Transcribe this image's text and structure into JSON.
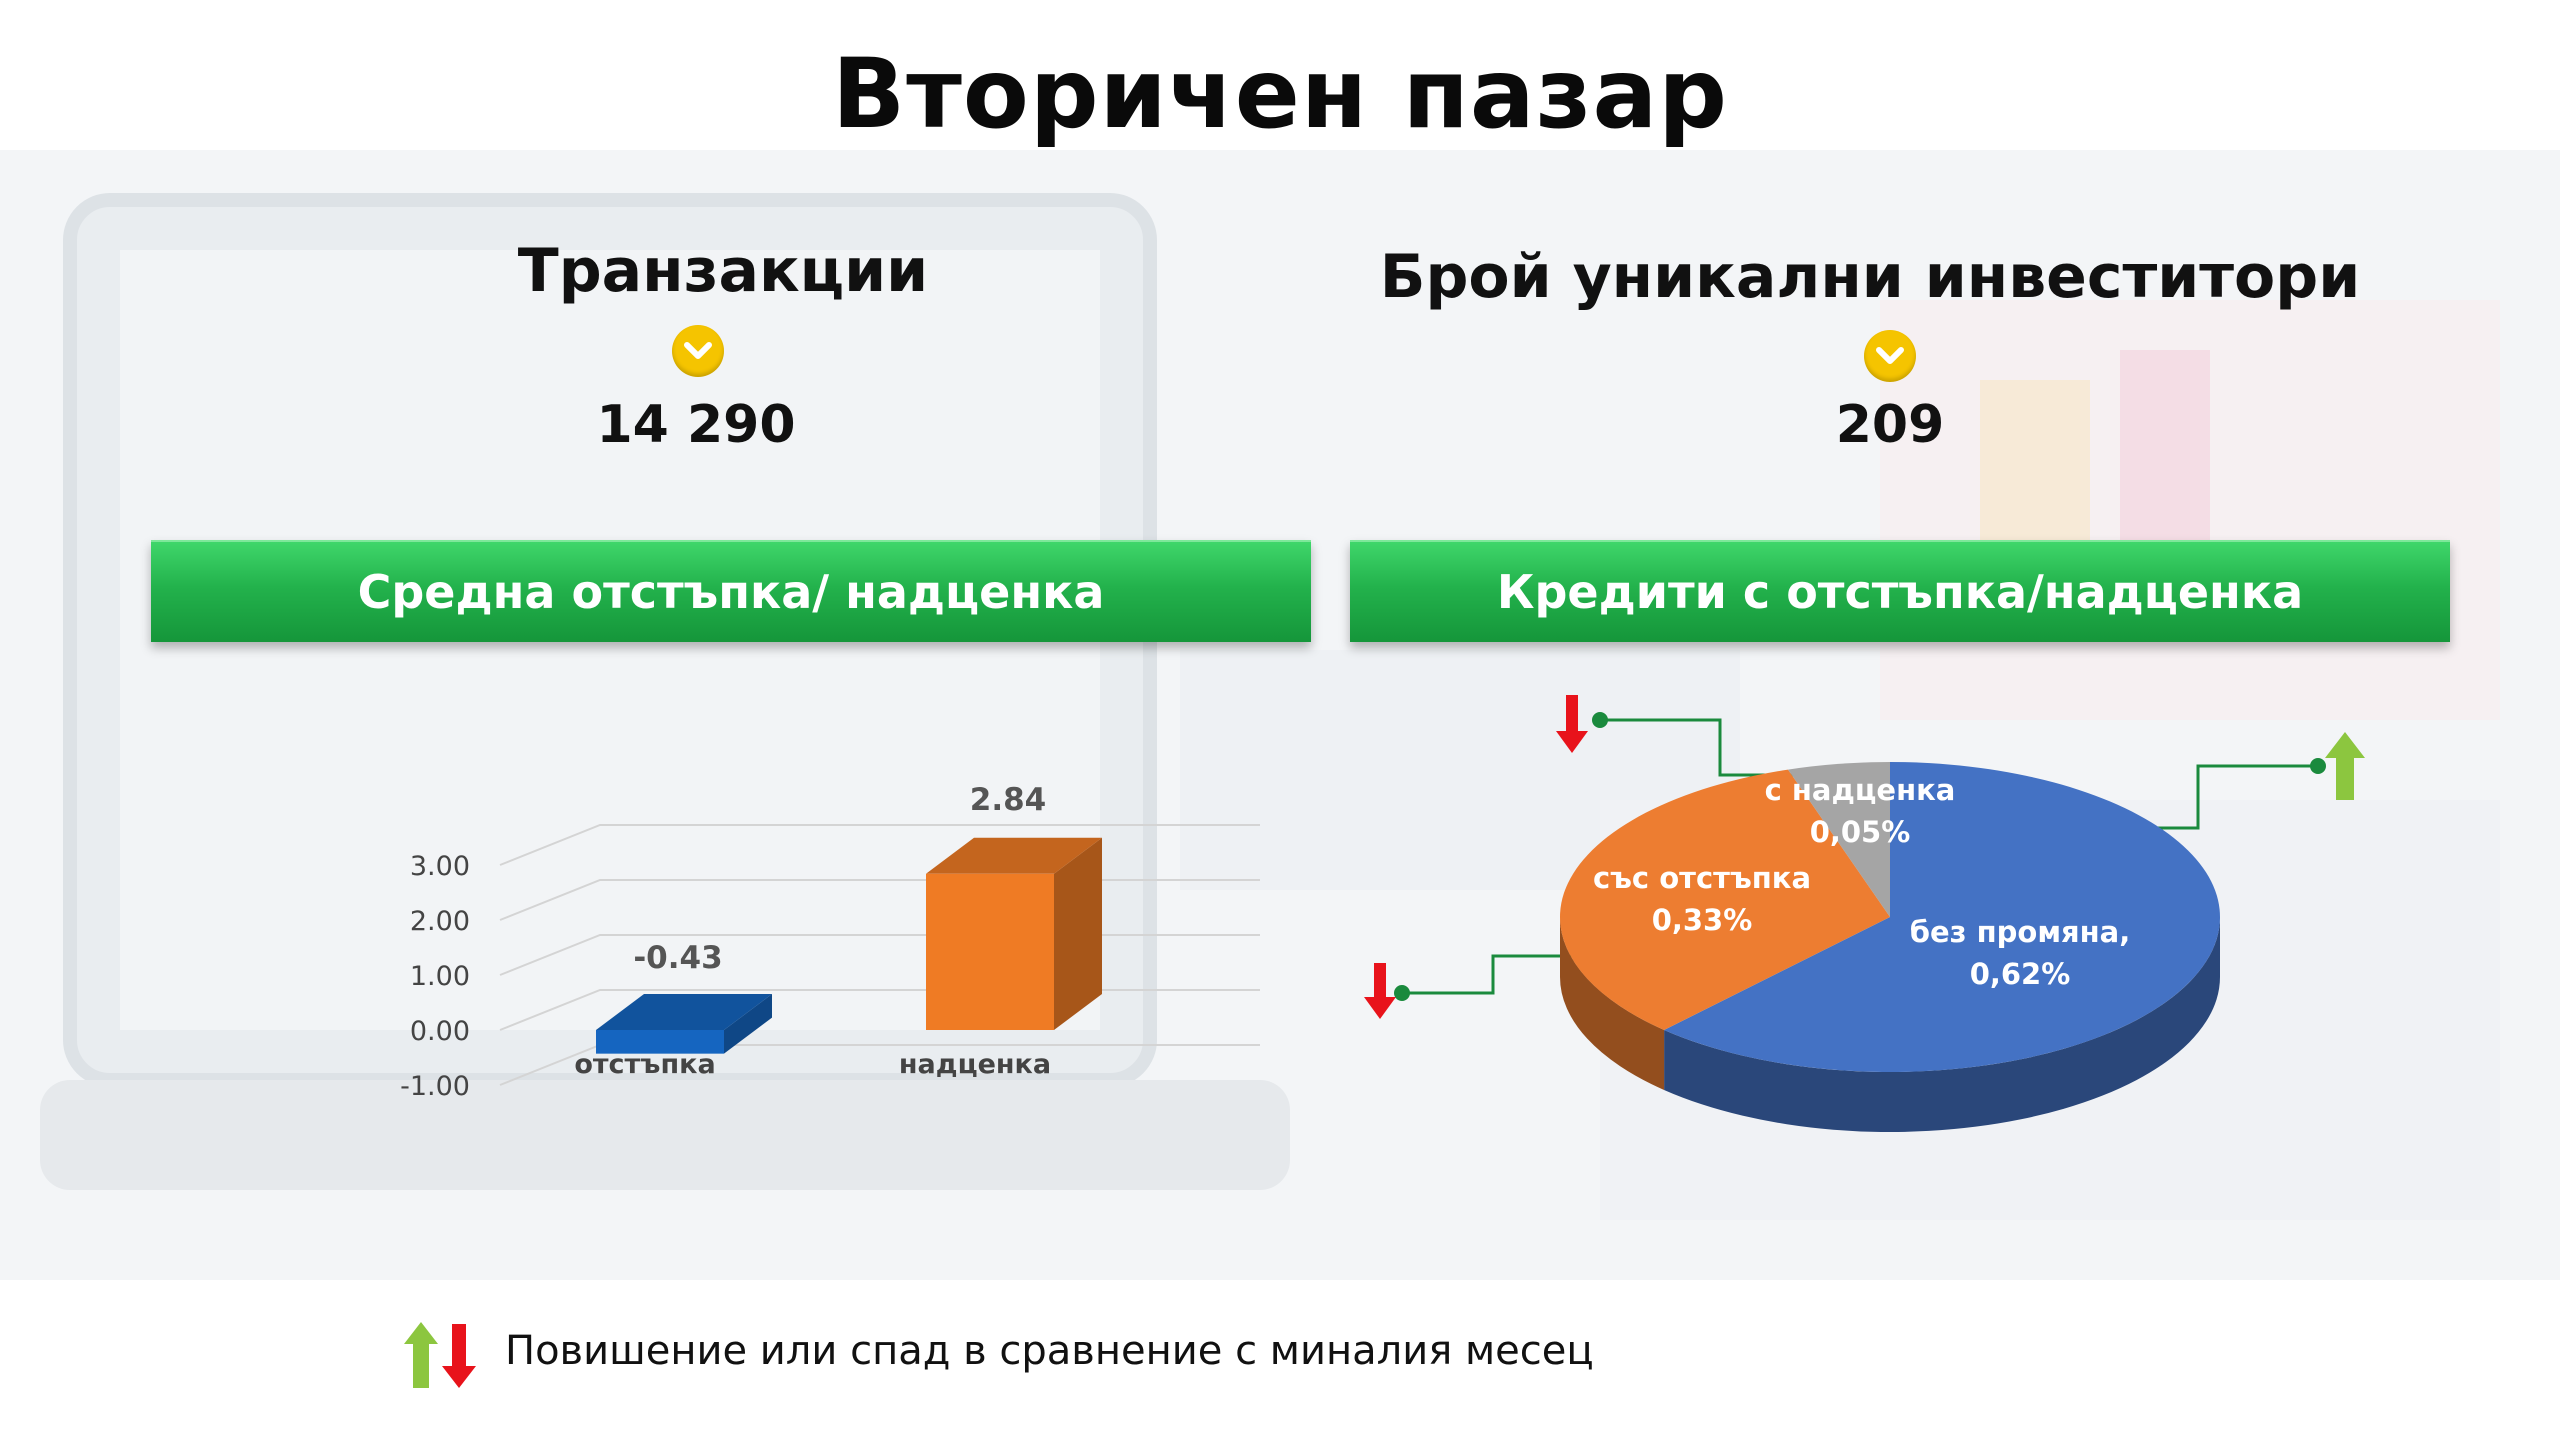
{
  "title": "Вторичен пазар",
  "transactions": {
    "label": "Транзакции",
    "value": "14 290",
    "trend_icon": "chevron-down-icon"
  },
  "investors": {
    "label": "Брой уникални инвеститори",
    "value": "209",
    "trend_icon": "chevron-down-icon"
  },
  "left_banner": "Средна отстъпка/ надценка",
  "right_banner": "Кредити с отстъпка/надценка",
  "legend": {
    "text": "Повишение или спад в сравнение с миналия месец",
    "icons": [
      "arrow-up-icon",
      "arrow-down-icon"
    ]
  },
  "colors": {
    "green_banner": "#23b24c",
    "accent_yellow": "#f5c400",
    "up": "#8cc63f",
    "down": "#e8131b"
  },
  "chart_data": [
    {
      "type": "bar",
      "categories": [
        "отстъпка",
        "надценка"
      ],
      "values": [
        -0.43,
        2.84
      ],
      "value_labels": [
        "-0.43",
        "2.84"
      ],
      "colors": [
        "#1565c0",
        "#ef7b24"
      ],
      "yticks": [
        "3.00",
        "2.00",
        "1.00",
        "0.00",
        "-1.00"
      ],
      "ylim": [
        -1,
        3
      ],
      "grid": true
    },
    {
      "type": "pie",
      "slices": [
        {
          "label": "без промяна,",
          "pct": "0,62%",
          "value": 0.62,
          "color": "#4472c4",
          "trend": "up"
        },
        {
          "label": "със отстъпка",
          "pct": "0,33%",
          "value": 0.33,
          "color": "#ed7d31",
          "trend": "down"
        },
        {
          "label": "с надценка",
          "pct": "0,05%",
          "value": 0.05,
          "color": "#a5a5a5",
          "trend": "down"
        }
      ]
    }
  ]
}
